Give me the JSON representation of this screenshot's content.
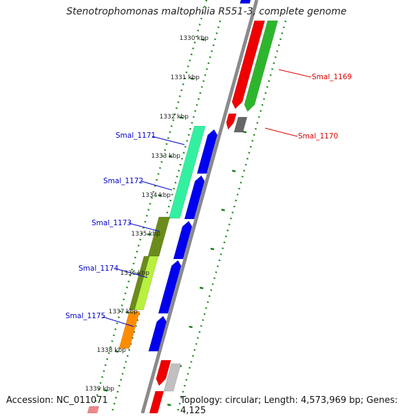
{
  "title": "Stenotrophomonas maltophilia R551-3, complete genome",
  "footer": {
    "accession": "Accession: NC_011071",
    "topology": "Topology: circular; Length: 4,573,969 bp; Genes: 4,125"
  },
  "ruler": [
    {
      "label": "1330 kbp"
    },
    {
      "label": "1331 kbp"
    },
    {
      "label": "1332 kbp"
    },
    {
      "label": "1333 kbp"
    },
    {
      "label": "1334 kbp"
    },
    {
      "label": "1335 kbp"
    },
    {
      "label": "1336 kbp"
    },
    {
      "label": "1337 kbp"
    },
    {
      "label": "1338 kbp"
    },
    {
      "label": "1339 kbp"
    }
  ],
  "gene_labels": [
    {
      "text": "Smal_1169",
      "color": "#dd0000"
    },
    {
      "text": "Smal_1170",
      "color": "#dd0000"
    },
    {
      "text": "Smal_1171",
      "color": "#0000cc"
    },
    {
      "text": "Smal_1172",
      "color": "#0000cc"
    },
    {
      "text": "Smal_1173",
      "color": "#0000cc"
    },
    {
      "text": "Smal_1174",
      "color": "#0000cc"
    },
    {
      "text": "Smal_1175",
      "color": "#0000cc"
    }
  ],
  "colors": {
    "backbone": "#8a8a8a",
    "dots": "#1f8a1f",
    "blue": "#0000ee",
    "red": "#ee0000",
    "green": "#2db52d",
    "mint": "#33f0a0",
    "olive": "#6b8c1a",
    "yellow_green": "#b8f040",
    "orange": "#ff8c00",
    "dark_gray": "#666666",
    "light_gray": "#c0c0c0"
  }
}
